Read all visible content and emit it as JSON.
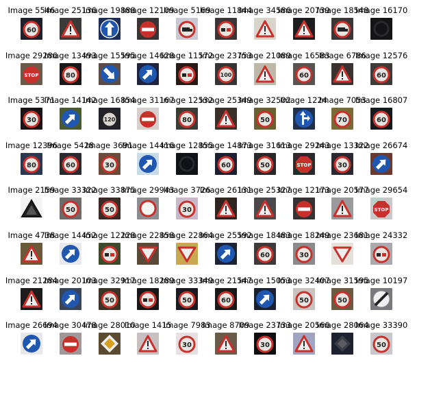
{
  "grid": {
    "rows": 8,
    "cols": 10
  },
  "images": [
    {
      "caption": "Image 5546",
      "sign": "speed60",
      "bg": "#1d2028"
    },
    {
      "caption": "Image 25136",
      "sign": "warn",
      "bg": "#3a3a38"
    },
    {
      "caption": "Image 19888",
      "sign": "arrow-up",
      "bg": "#1b2d55"
    },
    {
      "caption": "Image 12109",
      "sign": "noentry",
      "bg": "#3a3434"
    },
    {
      "caption": "Image 5169",
      "sign": "truck",
      "bg": "#c9c8d3"
    },
    {
      "caption": "Image 11844",
      "sign": "nopass",
      "bg": "#3b3635"
    },
    {
      "caption": "Image 34586",
      "sign": "warn",
      "bg": "#d8d4cc"
    },
    {
      "caption": "Image 20739",
      "sign": "warn",
      "bg": "#1d1d1f"
    },
    {
      "caption": "Image 18548",
      "sign": "truck",
      "bg": "#3a3636"
    },
    {
      "caption": "Image 16170",
      "sign": "dark",
      "bg": "#141416"
    },
    {
      "caption": "Image 29286",
      "sign": "stop",
      "bg": "#6b5a4a"
    },
    {
      "caption": "Image 13493",
      "sign": "speed80",
      "bg": "#1a1718"
    },
    {
      "caption": "Image 15595",
      "sign": "arrow-diag",
      "bg": "#5a4c46"
    },
    {
      "caption": "Image 14628",
      "sign": "arrow-blue",
      "bg": "#1e2440"
    },
    {
      "caption": "Image 11572",
      "sign": "nopass",
      "bg": "#2a1a15"
    },
    {
      "caption": "Image 23753",
      "sign": "speed100",
      "bg": "#353535"
    },
    {
      "caption": "Image 21089",
      "sign": "warn",
      "bg": "#bdb8a8"
    },
    {
      "caption": "Image 16583",
      "sign": "speed60",
      "bg": "#5a5450"
    },
    {
      "caption": "Image 6786",
      "sign": "warn",
      "bg": "#3a3230"
    },
    {
      "caption": "Image 12576",
      "sign": "speed60",
      "bg": "#3e3a38"
    },
    {
      "caption": "Image 5371",
      "sign": "speed30",
      "bg": "#1a1414"
    },
    {
      "caption": "Image 14142",
      "sign": "arrow-blue",
      "bg": "#4a5a30"
    },
    {
      "caption": "Image 16854",
      "sign": "speed120",
      "bg": "#22222a"
    },
    {
      "caption": "Image 31167",
      "sign": "noentry",
      "bg": "#d5d0ce"
    },
    {
      "caption": "Image 12532",
      "sign": "speed80",
      "bg": "#3a3c36"
    },
    {
      "caption": "Image 25349",
      "sign": "warn",
      "bg": "#3a3028"
    },
    {
      "caption": "Image 32502",
      "sign": "speed50",
      "bg": "#6a6032"
    },
    {
      "caption": "Image 1224",
      "sign": "arrow-split",
      "bg": "#20304a"
    },
    {
      "caption": "Image 7053",
      "sign": "speed70",
      "bg": "#7a6a36"
    },
    {
      "caption": "Image 16807",
      "sign": "speed60",
      "bg": "#151a1c"
    },
    {
      "caption": "Image 12396",
      "sign": "speed80",
      "bg": "#2a3850"
    },
    {
      "caption": "Image 5428",
      "sign": "speed60",
      "bg": "#2a2a2e"
    },
    {
      "caption": "Image 3691",
      "sign": "speed30",
      "bg": "#6a4a38"
    },
    {
      "caption": "Image 14416",
      "sign": "arrow-blue",
      "bg": "#c8dce8"
    },
    {
      "caption": "Image 12855",
      "sign": "dark",
      "bg": "#111118"
    },
    {
      "caption": "Image 14873",
      "sign": "speed60",
      "bg": "#1c2030"
    },
    {
      "caption": "Image 31613",
      "sign": "speed50",
      "bg": "#28282a"
    },
    {
      "caption": "Image 29243",
      "sign": "stop",
      "bg": "#2a2a2c"
    },
    {
      "caption": "Image 13322",
      "sign": "speed30",
      "bg": "#2a2830"
    },
    {
      "caption": "Image 26674",
      "sign": "arrow-blue",
      "bg": "#6a3a30"
    },
    {
      "caption": "Image 2159",
      "sign": "warn-black",
      "bg": "#f4f4f4"
    },
    {
      "caption": "Image 33322",
      "sign": "speed50",
      "bg": "#6e6a6a"
    },
    {
      "caption": "Image 33875",
      "sign": "speed50",
      "bg": "#3a2a28"
    },
    {
      "caption": "Image 29943",
      "sign": "circle-white",
      "bg": "#8e8e92"
    },
    {
      "caption": "Image 3726",
      "sign": "speed30",
      "bg": "#c8b8c8"
    },
    {
      "caption": "Image 26131",
      "sign": "warn",
      "bg": "#302420"
    },
    {
      "caption": "Image 25327",
      "sign": "warn",
      "bg": "#4a4848"
    },
    {
      "caption": "Image 12173",
      "sign": "noentry",
      "bg": "#363232"
    },
    {
      "caption": "Image 20577",
      "sign": "warn",
      "bg": "#9a9a9c"
    },
    {
      "caption": "Image 29654",
      "sign": "stop",
      "bg": "#c8c8c8"
    },
    {
      "caption": "Image 4738",
      "sign": "warn",
      "bg": "#6a5a3a"
    },
    {
      "caption": "Image 14452",
      "sign": "arrow-blue",
      "bg": "#e8e8ee"
    },
    {
      "caption": "Image 12228",
      "sign": "nopass",
      "bg": "#3a4a2a"
    },
    {
      "caption": "Image 22858",
      "sign": "yield",
      "bg": "#5a4838"
    },
    {
      "caption": "Image 22864",
      "sign": "yield",
      "bg": "#c8a850"
    },
    {
      "caption": "Image 25592",
      "sign": "arrow-blue",
      "bg": "#1c2434"
    },
    {
      "caption": "Image 18483",
      "sign": "speed60",
      "bg": "#3e3a3a"
    },
    {
      "caption": "Image 18249",
      "sign": "speed30",
      "bg": "#8a8a8c"
    },
    {
      "caption": "Image 23681",
      "sign": "yield",
      "bg": "#e4dfd8"
    },
    {
      "caption": "Image 24332",
      "sign": "nopass",
      "bg": "#aaaaae"
    },
    {
      "caption": "Image 21284",
      "sign": "warn",
      "bg": "#1c1c1c"
    },
    {
      "caption": "Image 20103",
      "sign": "arrow-blue",
      "bg": "#3a4458"
    },
    {
      "caption": "Image 32917",
      "sign": "speed50",
      "bg": "#3a3428"
    },
    {
      "caption": "Image 18289",
      "sign": "nopass",
      "bg": "#181818"
    },
    {
      "caption": "Image 33349",
      "sign": "speed50",
      "bg": "#1a1a22"
    },
    {
      "caption": "Image 21547",
      "sign": "speed60",
      "bg": "#181818"
    },
    {
      "caption": "Image 15053",
      "sign": "arrow-blue",
      "bg": "#1a2030"
    },
    {
      "caption": "Image 32407",
      "sign": "speed50",
      "bg": "#c8c2c0"
    },
    {
      "caption": "Image 31595",
      "sign": "speed50",
      "bg": "#6a5a40"
    },
    {
      "caption": "Image 10197",
      "sign": "endlimit",
      "bg": "#7a7a7e"
    },
    {
      "caption": "Image 26694",
      "sign": "arrow-blue",
      "bg": "#e8e8e8"
    },
    {
      "caption": "Image 30478",
      "sign": "noentry",
      "bg": "#a09898"
    },
    {
      "caption": "Image 28010",
      "sign": "priority",
      "bg": "#5a4a30"
    },
    {
      "caption": "Image 1415",
      "sign": "warn",
      "bg": "#c8c0c0"
    },
    {
      "caption": "Image 7983",
      "sign": "speed30",
      "bg": "#e8e0e0"
    },
    {
      "caption": "Image 8709",
      "sign": "warn",
      "bg": "#6a5a48"
    },
    {
      "caption": "Image 23733",
      "sign": "speed30",
      "bg": "#0e0e10"
    },
    {
      "caption": "Image 20566",
      "sign": "warn",
      "bg": "#a0a4c0"
    },
    {
      "caption": "Image 28064",
      "sign": "priority-dark",
      "bg": "#1e2230"
    },
    {
      "caption": "Image 33390",
      "sign": "speed50",
      "bg": "#c8c8cc"
    }
  ]
}
